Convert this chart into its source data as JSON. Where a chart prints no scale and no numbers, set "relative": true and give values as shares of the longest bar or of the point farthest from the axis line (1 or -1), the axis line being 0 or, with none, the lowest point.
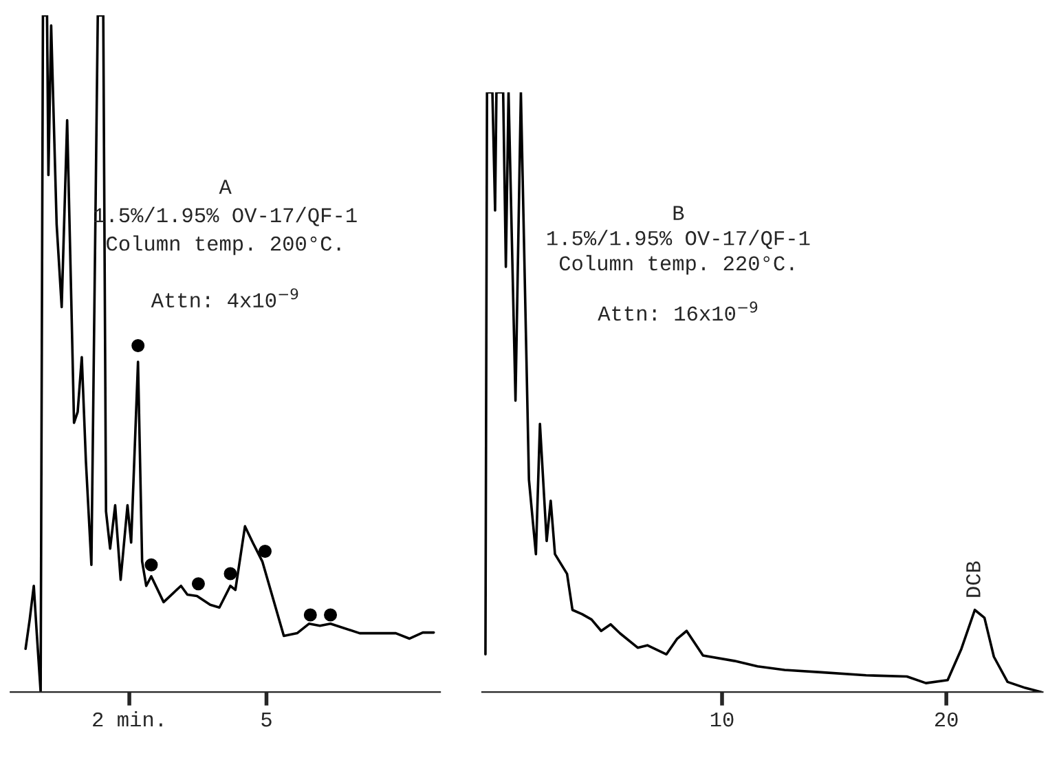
{
  "chart_data": [
    {
      "type": "line",
      "relative": true,
      "title": "A",
      "annotations": [
        "1.5%/1.95% OV-17/QF-1",
        "Column temp. 200°C.",
        "Attn: 4x10$^{−9}$"
      ],
      "xlim": [
        -0.6,
        8.8
      ],
      "xticks": [
        {
          "value": 2,
          "label": "2 min."
        },
        5
      ],
      "grid": false,
      "legend": false,
      "series": [
        {
          "color": "#000000",
          "marker": "none",
          "x": [
            -0.27,
            -0.18,
            -0.09,
            -0.03,
            0.06,
            0.11,
            0.2,
            0.23,
            0.29,
            0.41,
            0.52,
            0.64,
            0.73,
            0.79,
            0.87,
            0.96,
            1.05,
            1.17,
            1.31,
            1.43,
            1.49,
            1.58,
            1.69,
            1.81,
            1.96,
            2.04,
            2.19,
            2.28,
            2.37,
            2.48,
            2.75,
            3.13,
            3.27,
            3.48,
            3.77,
            3.97,
            4.21,
            4.32,
            4.53,
            4.7,
            4.91,
            5.38,
            5.67,
            5.93,
            6.17,
            6.4,
            7.04,
            7.83,
            8.13,
            8.42,
            8.66
          ],
          "values": [
            0.064,
            0.107,
            0.157,
            0.092,
            0,
            1,
            1,
            0.764,
            0.985,
            0.691,
            0.569,
            0.845,
            0.58,
            0.398,
            0.414,
            0.495,
            0.341,
            0.188,
            1,
            1,
            0.267,
            0.212,
            0.276,
            0.166,
            0.276,
            0.221,
            0.488,
            0.193,
            0.157,
            0.171,
            0.133,
            0.157,
            0.144,
            0.142,
            0.129,
            0.125,
            0.157,
            0.151,
            0.245,
            0.221,
            0.193,
            0.083,
            0.087,
            0.101,
            0.098,
            0.101,
            0.087,
            0.087,
            0.079,
            0.088,
            0.088
          ]
        },
        {
          "type": "scatter",
          "color": "#000000",
          "marker": "circle",
          "x": [
            2.19,
            2.48,
            3.51,
            4.21,
            4.97,
            5.96,
            6.4
          ],
          "values": [
            0.512,
            0.188,
            0.16,
            0.175,
            0.208,
            0.114,
            0.114
          ]
        }
      ]
    },
    {
      "type": "line",
      "relative": true,
      "title": "B",
      "annotations": [
        "1.5%/1.95% OV-17/QF-1",
        "Column temp. 220°C.",
        "Attn: 16x10$^{−9}$",
        {
          "text": "DCB",
          "x": 21.27,
          "y": 0.137
        }
      ],
      "xlim": [
        -0.7,
        24.3
      ],
      "xticks": [
        10,
        20
      ],
      "grid": false,
      "legend": false,
      "series": [
        {
          "color": "#000000",
          "marker": "none",
          "x": [
            -0.55,
            -0.48,
            -0.24,
            -0.12,
            -0.06,
            0.24,
            0.36,
            0.48,
            0.79,
            1.03,
            1.39,
            1.7,
            1.88,
            2.18,
            2.36,
            2.55,
            3.09,
            3.33,
            3.76,
            4.18,
            4.61,
            5.03,
            5.45,
            6.24,
            6.67,
            7.52,
            8.0,
            8.42,
            9.15,
            10.55,
            11.58,
            12.79,
            14.42,
            16.42,
            18.24,
            19.09,
            20.06,
            20.67,
            21.27,
            21.7,
            22.12,
            22.73,
            23.52,
            24.24
          ],
          "values": [
            0.063,
            1,
            1,
            0.803,
            1,
            1,
            0.709,
            1,
            0.486,
            1,
            0.354,
            0.23,
            0.447,
            0.252,
            0.319,
            0.23,
            0.197,
            0.137,
            0.13,
            0.121,
            0.102,
            0.113,
            0.098,
            0.074,
            0.078,
            0.063,
            0.089,
            0.102,
            0.061,
            0.052,
            0.043,
            0.037,
            0.033,
            0.028,
            0.026,
            0.015,
            0.02,
            0.072,
            0.137,
            0.124,
            0.059,
            0.017,
            0.007,
            0
          ]
        }
      ]
    }
  ]
}
